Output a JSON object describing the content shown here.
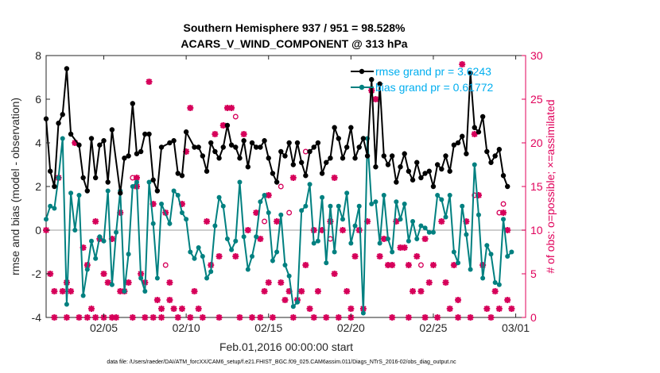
{
  "chart_data": {
    "type": "line",
    "title": "Southern Hemisphere 937 / 951 = 98.528%",
    "subtitle": "ACARS_V_WIND_COMPONENT @ 313 hPa",
    "xlabel": "Feb.01,2016 00:00:00 start",
    "ylabel_left": "rmse and bias (model - observation)",
    "ylabel_right": "# of obs: o=possible; ×=assimilated",
    "footnote": "data file: /Users/raeder/DAI/ATM_forcXX/CAM6_setup/f.e21.FHIST_BGC.f09_025.CAM6assim.011/Diags_NTrS_2016-02/obs_diag_output.nc",
    "xlim": [
      0.5,
      29.6
    ],
    "ylim_left": [
      -4,
      8
    ],
    "ylim_right": [
      0,
      30
    ],
    "left_ticks": [
      "-4",
      "-2",
      "0",
      "2",
      "4",
      "6",
      "8"
    ],
    "right_ticks": [
      "0",
      "5",
      "10",
      "15",
      "20",
      "25",
      "30"
    ],
    "x_ticks": [
      {
        "x": 4,
        "label": "02/05"
      },
      {
        "x": 9,
        "label": "02/10"
      },
      {
        "x": 14,
        "label": "02/15"
      },
      {
        "x": 19,
        "label": "02/20"
      },
      {
        "x": 24,
        "label": "02/25"
      },
      {
        "x": 29,
        "label": "03/01"
      }
    ],
    "grid": false,
    "zero_line": true,
    "legend": [
      {
        "name": "rmse grand pr = 3.6243",
        "color": "#000000",
        "text_color": "#00AEEF"
      },
      {
        "name": "bias grand pr = 0.61772",
        "color": "#008080",
        "text_color": "#00AEEF"
      }
    ],
    "rmse": [
      [
        0.5,
        5.1
      ],
      [
        0.75,
        2.7
      ],
      [
        1.0,
        2.0
      ],
      [
        1.25,
        4.9
      ],
      [
        1.5,
        5.3
      ],
      [
        1.75,
        7.4
      ],
      [
        2.0,
        4.4
      ],
      [
        2.5,
        3.9
      ],
      [
        2.75,
        2.4
      ],
      [
        3.0,
        1.8
      ],
      [
        3.25,
        4.2
      ],
      [
        3.5,
        2.4
      ],
      [
        3.75,
        3.9
      ],
      [
        4.0,
        4.1
      ],
      [
        4.25,
        2.2
      ],
      [
        4.5,
        4.6
      ],
      [
        5.0,
        1.7
      ],
      [
        5.25,
        3.3
      ],
      [
        5.5,
        3.4
      ],
      [
        5.75,
        5.8
      ],
      [
        6.0,
        3.5
      ],
      [
        6.25,
        3.6
      ],
      [
        6.5,
        4.4
      ],
      [
        6.75,
        4.4
      ],
      [
        7.0,
        2.3
      ],
      [
        7.25,
        1.8
      ],
      [
        7.5,
        3.8
      ],
      [
        8.0,
        4.0
      ],
      [
        8.25,
        4.1
      ],
      [
        8.5,
        2.6
      ],
      [
        8.75,
        2.5
      ],
      [
        9.0,
        4.5
      ],
      [
        9.5,
        3.8
      ],
      [
        9.75,
        3.8
      ],
      [
        10.0,
        3.4
      ],
      [
        10.25,
        2.7
      ],
      [
        10.5,
        4.0
      ],
      [
        10.75,
        3.6
      ],
      [
        11.0,
        3.3
      ],
      [
        11.25,
        3.8
      ],
      [
        11.5,
        4.8
      ],
      [
        11.75,
        3.9
      ],
      [
        12.0,
        3.8
      ],
      [
        12.25,
        3.3
      ],
      [
        12.5,
        4.1
      ],
      [
        12.75,
        2.9
      ],
      [
        13.0,
        4.0
      ],
      [
        13.25,
        3.8
      ],
      [
        13.5,
        3.8
      ],
      [
        13.75,
        4.1
      ],
      [
        14.0,
        3.3
      ],
      [
        14.25,
        2.6
      ],
      [
        14.5,
        2.2
      ],
      [
        14.75,
        3.6
      ],
      [
        15.0,
        3.4
      ],
      [
        15.25,
        4.0
      ],
      [
        15.5,
        3.0
      ],
      [
        15.75,
        4.0
      ],
      [
        16.0,
        3.1
      ],
      [
        16.25,
        2.5
      ],
      [
        16.5,
        3.6
      ],
      [
        16.75,
        3.8
      ],
      [
        17.0,
        4.0
      ],
      [
        17.25,
        2.6
      ],
      [
        17.5,
        3.1
      ],
      [
        17.75,
        3.3
      ],
      [
        18.0,
        4.7
      ],
      [
        18.25,
        4.2
      ],
      [
        18.5,
        3.3
      ],
      [
        18.75,
        3.8
      ],
      [
        19.0,
        4.7
      ],
      [
        19.25,
        3.3
      ],
      [
        19.5,
        3.8
      ],
      [
        19.75,
        4.2
      ],
      [
        20.0,
        3.4
      ],
      [
        20.25,
        6.9
      ],
      [
        20.5,
        2.9
      ],
      [
        20.75,
        6.7
      ],
      [
        21.0,
        3.4
      ],
      [
        21.25,
        3.0
      ],
      [
        21.5,
        3.4
      ],
      [
        21.75,
        2.2
      ],
      [
        22.0,
        2.9
      ],
      [
        22.25,
        3.5
      ],
      [
        22.5,
        2.7
      ],
      [
        22.75,
        2.3
      ],
      [
        23.0,
        3.1
      ],
      [
        23.25,
        2.4
      ],
      [
        23.5,
        2.6
      ],
      [
        23.75,
        2.7
      ],
      [
        24.0,
        2.0
      ],
      [
        24.25,
        3.0
      ],
      [
        24.5,
        2.8
      ],
      [
        24.75,
        3.4
      ],
      [
        25.0,
        2.7
      ],
      [
        25.25,
        3.9
      ],
      [
        25.5,
        4.0
      ],
      [
        25.75,
        4.3
      ],
      [
        26.0,
        3.5
      ],
      [
        26.25,
        7.2
      ],
      [
        26.5,
        4.7
      ],
      [
        26.75,
        4.5
      ],
      [
        27.0,
        5.2
      ],
      [
        27.25,
        3.6
      ],
      [
        27.5,
        3.1
      ],
      [
        27.75,
        3.4
      ],
      [
        28.0,
        3.7
      ],
      [
        28.25,
        2.5
      ],
      [
        28.5,
        2.0
      ]
    ],
    "bias": [
      [
        0.5,
        0.5
      ],
      [
        0.75,
        1.1
      ],
      [
        1.0,
        1.0
      ],
      [
        1.25,
        2.4
      ],
      [
        1.5,
        4.2
      ],
      [
        1.75,
        -3.4
      ],
      [
        2.0,
        1.7
      ],
      [
        2.25,
        0.0
      ],
      [
        2.5,
        1.6
      ],
      [
        2.75,
        -3.0
      ],
      [
        3.0,
        -1.8
      ],
      [
        3.25,
        -0.5
      ],
      [
        3.5,
        -1.3
      ],
      [
        3.75,
        -0.3
      ],
      [
        4.0,
        -0.5
      ],
      [
        4.25,
        1.8
      ],
      [
        4.5,
        -2.5
      ],
      [
        4.75,
        -0.1
      ],
      [
        5.0,
        1.8
      ],
      [
        5.25,
        -2.8
      ],
      [
        5.5,
        -1.1
      ],
      [
        5.75,
        2.0
      ],
      [
        6.0,
        2.2
      ],
      [
        6.25,
        -2.2
      ],
      [
        6.5,
        -2.8
      ],
      [
        6.75,
        2.2
      ],
      [
        7.0,
        0.3
      ],
      [
        7.25,
        -2.2
      ],
      [
        7.5,
        1.2
      ],
      [
        8.0,
        0.3
      ],
      [
        8.25,
        1.8
      ],
      [
        8.5,
        1.6
      ],
      [
        8.75,
        0.8
      ],
      [
        9.0,
        0.5
      ],
      [
        9.25,
        -1.0
      ],
      [
        9.5,
        -1.3
      ],
      [
        9.75,
        -0.8
      ],
      [
        10.0,
        -1.2
      ],
      [
        10.25,
        -2.2
      ],
      [
        10.5,
        -1.9
      ],
      [
        10.75,
        0.2
      ],
      [
        11.0,
        1.5
      ],
      [
        11.25,
        1.1
      ],
      [
        11.5,
        -0.4
      ],
      [
        11.75,
        -0.9
      ],
      [
        12.0,
        -0.5
      ],
      [
        12.25,
        2.2
      ],
      [
        12.5,
        -0.3
      ],
      [
        12.75,
        -1.8
      ],
      [
        13.0,
        -1.2
      ],
      [
        13.25,
        -0.3
      ],
      [
        13.5,
        1.3
      ],
      [
        13.75,
        1.6
      ],
      [
        14.0,
        0.8
      ],
      [
        14.25,
        -1.4
      ],
      [
        14.5,
        -1.0
      ],
      [
        14.75,
        0.7
      ],
      [
        15.0,
        -1.6
      ],
      [
        15.25,
        -2.1
      ],
      [
        15.5,
        -3.5
      ],
      [
        15.75,
        -3.3
      ],
      [
        16.0,
        0.9
      ],
      [
        16.25,
        1.1
      ],
      [
        16.5,
        2.1
      ],
      [
        16.75,
        -0.6
      ],
      [
        17.0,
        -0.5
      ],
      [
        17.25,
        1.5
      ],
      [
        17.5,
        -1.5
      ],
      [
        17.75,
        1.1
      ],
      [
        18.0,
        -1.0
      ],
      [
        18.25,
        1.1
      ],
      [
        18.5,
        0.5
      ],
      [
        18.75,
        1.7
      ],
      [
        19.0,
        -0.6
      ],
      [
        19.25,
        0.2
      ],
      [
        19.5,
        1.1
      ],
      [
        19.75,
        -3.8
      ],
      [
        20.0,
        4.2
      ],
      [
        20.25,
        1.2
      ],
      [
        20.5,
        1.3
      ],
      [
        20.75,
        -0.6
      ],
      [
        21.0,
        1.6
      ],
      [
        21.25,
        -0.4
      ],
      [
        21.5,
        -1.0
      ],
      [
        21.75,
        1.3
      ],
      [
        22.0,
        0.5
      ],
      [
        22.25,
        1.2
      ],
      [
        22.5,
        -0.5
      ],
      [
        22.75,
        0.4
      ],
      [
        23.0,
        -0.4
      ],
      [
        23.25,
        0.2
      ],
      [
        23.5,
        0.1
      ],
      [
        23.75,
        -0.1
      ],
      [
        24.0,
        -0.1
      ],
      [
        24.25,
        1.6
      ],
      [
        24.5,
        1.4
      ],
      [
        24.75,
        0.6
      ],
      [
        25.0,
        1.6
      ],
      [
        25.25,
        -1.0
      ],
      [
        25.5,
        -1.5
      ],
      [
        25.75,
        1.1
      ],
      [
        26.0,
        -0.2
      ],
      [
        26.25,
        -1.8
      ],
      [
        26.5,
        3.0
      ],
      [
        26.75,
        0.7
      ],
      [
        27.0,
        -2.2
      ],
      [
        27.25,
        -0.7
      ],
      [
        27.5,
        -1.1
      ],
      [
        27.75,
        -2.4
      ],
      [
        28.0,
        -2.5
      ],
      [
        28.25,
        0.5
      ],
      [
        28.5,
        -1.2
      ],
      [
        28.75,
        -1.0
      ]
    ],
    "assimilated": [
      [
        0.5,
        10
      ],
      [
        0.75,
        5
      ],
      [
        1.0,
        3
      ],
      [
        1.0,
        0
      ],
      [
        1.25,
        16
      ],
      [
        1.5,
        3
      ],
      [
        1.75,
        0
      ],
      [
        1.75,
        4
      ],
      [
        2.0,
        3
      ],
      [
        2.25,
        20
      ],
      [
        2.5,
        0
      ],
      [
        2.75,
        8
      ],
      [
        3.0,
        6
      ],
      [
        3.0,
        0
      ],
      [
        3.25,
        1
      ],
      [
        3.5,
        11
      ],
      [
        3.5,
        0
      ],
      [
        3.75,
        9
      ],
      [
        4.0,
        5
      ],
      [
        4.0,
        0
      ],
      [
        4.25,
        4
      ],
      [
        4.5,
        9
      ],
      [
        4.5,
        0
      ],
      [
        4.75,
        0
      ],
      [
        5.0,
        12
      ],
      [
        5.0,
        3
      ],
      [
        5.25,
        3
      ],
      [
        5.5,
        4
      ],
      [
        5.75,
        0
      ],
      [
        6.0,
        16
      ],
      [
        6.0,
        15
      ],
      [
        6.25,
        5
      ],
      [
        6.5,
        4
      ],
      [
        6.5,
        0
      ],
      [
        6.75,
        27
      ],
      [
        7.0,
        13
      ],
      [
        7.0,
        0
      ],
      [
        7.25,
        2
      ],
      [
        7.5,
        1
      ],
      [
        7.5,
        0
      ],
      [
        7.75,
        12
      ],
      [
        8.0,
        4
      ],
      [
        8.0,
        2
      ],
      [
        8.25,
        1
      ],
      [
        8.5,
        0
      ],
      [
        8.75,
        13
      ],
      [
        8.75,
        1
      ],
      [
        9.0,
        19
      ],
      [
        9.25,
        24
      ],
      [
        9.25,
        0
      ],
      [
        9.5,
        3
      ],
      [
        9.75,
        1
      ],
      [
        10.0,
        0
      ],
      [
        10.25,
        11
      ],
      [
        10.5,
        6
      ],
      [
        10.75,
        21
      ],
      [
        11.0,
        7
      ],
      [
        11.0,
        0
      ],
      [
        11.25,
        22
      ],
      [
        11.5,
        24
      ],
      [
        11.75,
        24
      ],
      [
        12.0,
        7
      ],
      [
        12.25,
        0
      ],
      [
        12.5,
        21
      ],
      [
        12.75,
        10
      ],
      [
        13.0,
        0
      ],
      [
        13.25,
        12
      ],
      [
        13.5,
        9
      ],
      [
        13.5,
        0
      ],
      [
        13.75,
        3
      ],
      [
        14.0,
        14
      ],
      [
        14.0,
        4
      ],
      [
        14.25,
        0
      ],
      [
        14.5,
        11
      ],
      [
        14.75,
        4
      ],
      [
        15.0,
        2
      ],
      [
        15.25,
        3
      ],
      [
        15.5,
        16
      ],
      [
        15.5,
        0
      ],
      [
        15.75,
        2
      ],
      [
        16.0,
        3
      ],
      [
        16.25,
        6
      ],
      [
        16.5,
        1
      ],
      [
        16.75,
        10
      ],
      [
        16.75,
        0
      ],
      [
        17.0,
        3
      ],
      [
        17.25,
        10
      ],
      [
        17.5,
        0
      ],
      [
        17.75,
        11
      ],
      [
        18.0,
        16
      ],
      [
        18.0,
        5
      ],
      [
        18.25,
        0
      ],
      [
        18.5,
        10
      ],
      [
        18.75,
        3
      ],
      [
        19.0,
        1
      ],
      [
        19.0,
        0
      ],
      [
        19.25,
        7
      ],
      [
        19.5,
        10
      ],
      [
        19.75,
        1
      ],
      [
        20.0,
        11
      ],
      [
        20.25,
        26
      ],
      [
        20.5,
        25
      ],
      [
        20.75,
        7
      ],
      [
        21.0,
        9
      ],
      [
        21.25,
        6
      ],
      [
        21.5,
        6
      ],
      [
        21.5,
        0
      ],
      [
        21.75,
        11
      ],
      [
        22.0,
        8
      ],
      [
        22.25,
        8
      ],
      [
        22.5,
        6
      ],
      [
        22.5,
        0
      ],
      [
        22.75,
        3
      ],
      [
        23.0,
        7
      ],
      [
        23.25,
        3
      ],
      [
        23.5,
        9
      ],
      [
        23.5,
        0
      ],
      [
        23.75,
        4
      ],
      [
        24.0,
        6
      ],
      [
        24.25,
        0
      ],
      [
        24.5,
        11
      ],
      [
        24.75,
        4
      ],
      [
        25.0,
        1
      ],
      [
        25.25,
        6
      ],
      [
        25.5,
        2
      ],
      [
        25.5,
        0
      ],
      [
        25.75,
        29
      ],
      [
        26.0,
        11
      ],
      [
        26.25,
        0
      ],
      [
        26.5,
        21
      ],
      [
        26.75,
        14
      ],
      [
        27.0,
        6
      ],
      [
        27.25,
        1
      ],
      [
        27.5,
        0
      ],
      [
        27.75,
        3
      ],
      [
        28.0,
        1
      ],
      [
        28.25,
        12
      ],
      [
        28.5,
        10
      ],
      [
        28.5,
        2
      ],
      [
        28.75,
        1
      ]
    ],
    "possible": [
      [
        2.25,
        20
      ],
      [
        5.75,
        16
      ],
      [
        7.75,
        6
      ],
      [
        11.25,
        22
      ],
      [
        12.0,
        23
      ],
      [
        13.75,
        11
      ],
      [
        14.75,
        15
      ],
      [
        15.25,
        12
      ],
      [
        16.25,
        19
      ],
      [
        17.75,
        9
      ],
      [
        20.25,
        26
      ],
      [
        23.25,
        6
      ],
      [
        26.5,
        14
      ],
      [
        28.0,
        12
      ],
      [
        28.25,
        13
      ]
    ]
  }
}
